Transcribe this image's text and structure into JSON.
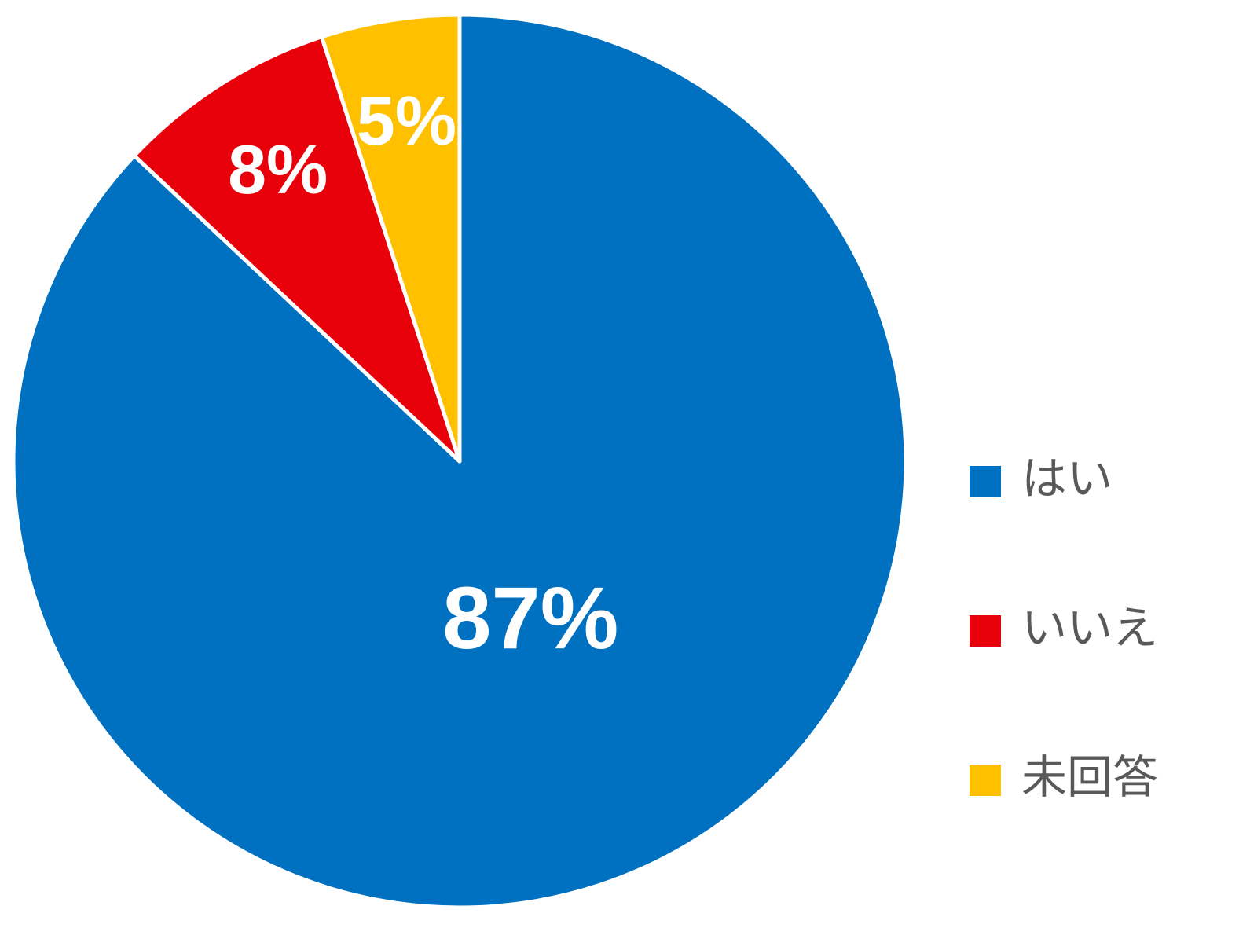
{
  "chart_data": {
    "type": "pie",
    "categories": [
      "はい",
      "いいえ",
      "未回答"
    ],
    "values": [
      87,
      8,
      5
    ],
    "value_labels": [
      "87%",
      "8%",
      "5%"
    ],
    "colors": [
      "#0070c0",
      "#e8000b",
      "#ffc000"
    ],
    "legend": "right"
  }
}
